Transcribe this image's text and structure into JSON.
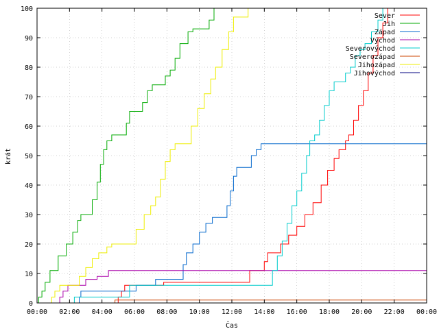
{
  "chart_data": {
    "type": "line",
    "title": "",
    "xlabel": "Čas",
    "ylabel": "krát",
    "xlim": [
      0,
      24
    ],
    "ylim": [
      0,
      100
    ],
    "x_ticks": [
      0,
      2,
      4,
      6,
      8,
      10,
      12,
      14,
      16,
      18,
      20,
      22,
      24
    ],
    "x_tick_labels": [
      "00:00",
      "02:00",
      "04:00",
      "06:00",
      "08:00",
      "10:00",
      "12:00",
      "14:00",
      "16:00",
      "18:00",
      "20:00",
      "22:00",
      "00:00"
    ],
    "y_ticks": [
      0,
      10,
      20,
      30,
      40,
      50,
      60,
      70,
      80,
      90,
      100
    ],
    "grid": true,
    "legend_position": "top-right",
    "series": [
      {
        "name": "Sever",
        "color": "#ff0000",
        "points": [
          [
            0,
            0
          ],
          [
            4.8,
            0
          ],
          [
            5.0,
            2
          ],
          [
            5.2,
            4
          ],
          [
            5.4,
            6
          ],
          [
            7.6,
            6
          ],
          [
            7.8,
            7
          ],
          [
            8.0,
            7
          ],
          [
            13.0,
            7
          ],
          [
            13.1,
            11
          ],
          [
            13.8,
            11
          ],
          [
            14.0,
            14
          ],
          [
            14.2,
            17
          ],
          [
            14.8,
            17
          ],
          [
            15.0,
            20
          ],
          [
            15.5,
            23
          ],
          [
            16.0,
            26
          ],
          [
            16.5,
            30
          ],
          [
            17.0,
            34
          ],
          [
            17.5,
            40
          ],
          [
            17.9,
            45
          ],
          [
            18.3,
            49
          ],
          [
            18.6,
            52
          ],
          [
            19.0,
            55
          ],
          [
            19.2,
            57
          ],
          [
            19.5,
            62
          ],
          [
            19.8,
            67
          ],
          [
            20.1,
            72
          ],
          [
            20.4,
            78
          ],
          [
            20.7,
            84
          ],
          [
            21.0,
            90
          ],
          [
            21.3,
            95
          ],
          [
            21.6,
            100
          ]
        ]
      },
      {
        "name": "Jih",
        "color": "#00aa00",
        "points": [
          [
            0,
            0
          ],
          [
            0.1,
            2
          ],
          [
            0.3,
            4
          ],
          [
            0.5,
            7
          ],
          [
            0.8,
            11
          ],
          [
            1.3,
            16
          ],
          [
            1.8,
            20
          ],
          [
            2.2,
            24
          ],
          [
            2.5,
            28
          ],
          [
            2.7,
            30
          ],
          [
            3.1,
            30
          ],
          [
            3.4,
            35
          ],
          [
            3.7,
            41
          ],
          [
            3.9,
            47
          ],
          [
            4.1,
            52
          ],
          [
            4.3,
            55
          ],
          [
            4.6,
            57
          ],
          [
            5.2,
            57
          ],
          [
            5.5,
            61
          ],
          [
            5.7,
            65
          ],
          [
            6.2,
            65
          ],
          [
            6.5,
            68
          ],
          [
            6.8,
            72
          ],
          [
            7.1,
            74
          ],
          [
            7.6,
            74
          ],
          [
            7.9,
            77
          ],
          [
            8.2,
            79
          ],
          [
            8.5,
            83
          ],
          [
            8.8,
            88
          ],
          [
            9.3,
            92
          ],
          [
            9.6,
            93
          ],
          [
            10.3,
            93
          ],
          [
            10.6,
            96
          ],
          [
            10.9,
            100
          ]
        ]
      },
      {
        "name": "Západ",
        "color": "#0066cc",
        "points": [
          [
            0,
            0
          ],
          [
            2.5,
            0
          ],
          [
            2.6,
            2
          ],
          [
            2.7,
            4
          ],
          [
            6.0,
            4
          ],
          [
            6.1,
            6
          ],
          [
            7.1,
            6
          ],
          [
            7.3,
            8
          ],
          [
            8.8,
            8
          ],
          [
            9.0,
            13
          ],
          [
            9.2,
            17
          ],
          [
            9.6,
            20
          ],
          [
            10.0,
            24
          ],
          [
            10.4,
            27
          ],
          [
            10.8,
            29
          ],
          [
            11.5,
            29
          ],
          [
            11.7,
            33
          ],
          [
            11.9,
            38
          ],
          [
            12.1,
            43
          ],
          [
            12.3,
            46
          ],
          [
            12.9,
            46
          ],
          [
            13.2,
            50
          ],
          [
            13.5,
            52
          ],
          [
            13.8,
            54
          ],
          [
            24,
            54
          ]
        ]
      },
      {
        "name": "Východ",
        "color": "#aa00aa",
        "points": [
          [
            0,
            0
          ],
          [
            1.2,
            0
          ],
          [
            1.4,
            2
          ],
          [
            1.6,
            4
          ],
          [
            1.9,
            6
          ],
          [
            2.8,
            6
          ],
          [
            3.0,
            8
          ],
          [
            3.5,
            8
          ],
          [
            3.7,
            9
          ],
          [
            4.2,
            9
          ],
          [
            4.4,
            11
          ],
          [
            24,
            11
          ]
        ]
      },
      {
        "name": "Severovýchod",
        "color": "#00cccc",
        "points": [
          [
            0,
            0
          ],
          [
            2.2,
            0
          ],
          [
            2.3,
            2
          ],
          [
            5.5,
            2
          ],
          [
            5.7,
            6
          ],
          [
            14.2,
            6
          ],
          [
            14.5,
            11
          ],
          [
            14.8,
            16
          ],
          [
            15.1,
            21
          ],
          [
            15.4,
            27
          ],
          [
            15.7,
            33
          ],
          [
            16.0,
            38
          ],
          [
            16.3,
            44
          ],
          [
            16.6,
            50
          ],
          [
            16.8,
            55
          ],
          [
            17.1,
            57
          ],
          [
            17.4,
            62
          ],
          [
            17.7,
            67
          ],
          [
            18.0,
            72
          ],
          [
            18.3,
            75
          ],
          [
            18.8,
            75
          ],
          [
            19.0,
            78
          ],
          [
            19.3,
            80
          ],
          [
            19.6,
            84
          ],
          [
            19.9,
            86
          ],
          [
            20.2,
            88
          ],
          [
            20.6,
            92
          ],
          [
            21.0,
            96
          ],
          [
            21.3,
            100
          ]
        ]
      },
      {
        "name": "Severozápad",
        "color": "#cc4400",
        "points": [
          [
            0,
            0
          ],
          [
            4.6,
            0
          ],
          [
            4.8,
            1
          ],
          [
            5.2,
            1
          ],
          [
            24,
            1
          ]
        ]
      },
      {
        "name": "Jihozápad",
        "color": "#eeee00",
        "points": [
          [
            0,
            0
          ],
          [
            0.8,
            0
          ],
          [
            0.9,
            2
          ],
          [
            1.1,
            4
          ],
          [
            1.4,
            6
          ],
          [
            2.3,
            6
          ],
          [
            2.6,
            9
          ],
          [
            3.0,
            12
          ],
          [
            3.4,
            15
          ],
          [
            3.8,
            17
          ],
          [
            4.3,
            19
          ],
          [
            4.6,
            20
          ],
          [
            5.7,
            20
          ],
          [
            6.1,
            25
          ],
          [
            6.6,
            30
          ],
          [
            7.0,
            33
          ],
          [
            7.3,
            36
          ],
          [
            7.6,
            42
          ],
          [
            7.9,
            48
          ],
          [
            8.2,
            52
          ],
          [
            8.5,
            54
          ],
          [
            9.2,
            54
          ],
          [
            9.5,
            60
          ],
          [
            9.9,
            66
          ],
          [
            10.3,
            71
          ],
          [
            10.7,
            76
          ],
          [
            11.0,
            80
          ],
          [
            11.4,
            86
          ],
          [
            11.8,
            92
          ],
          [
            12.1,
            97
          ],
          [
            12.9,
            97
          ],
          [
            13.0,
            100
          ]
        ]
      },
      {
        "name": "Jihovýchod",
        "color": "#000080",
        "points": [
          [
            0,
            0
          ],
          [
            24,
            0
          ]
        ]
      }
    ]
  }
}
